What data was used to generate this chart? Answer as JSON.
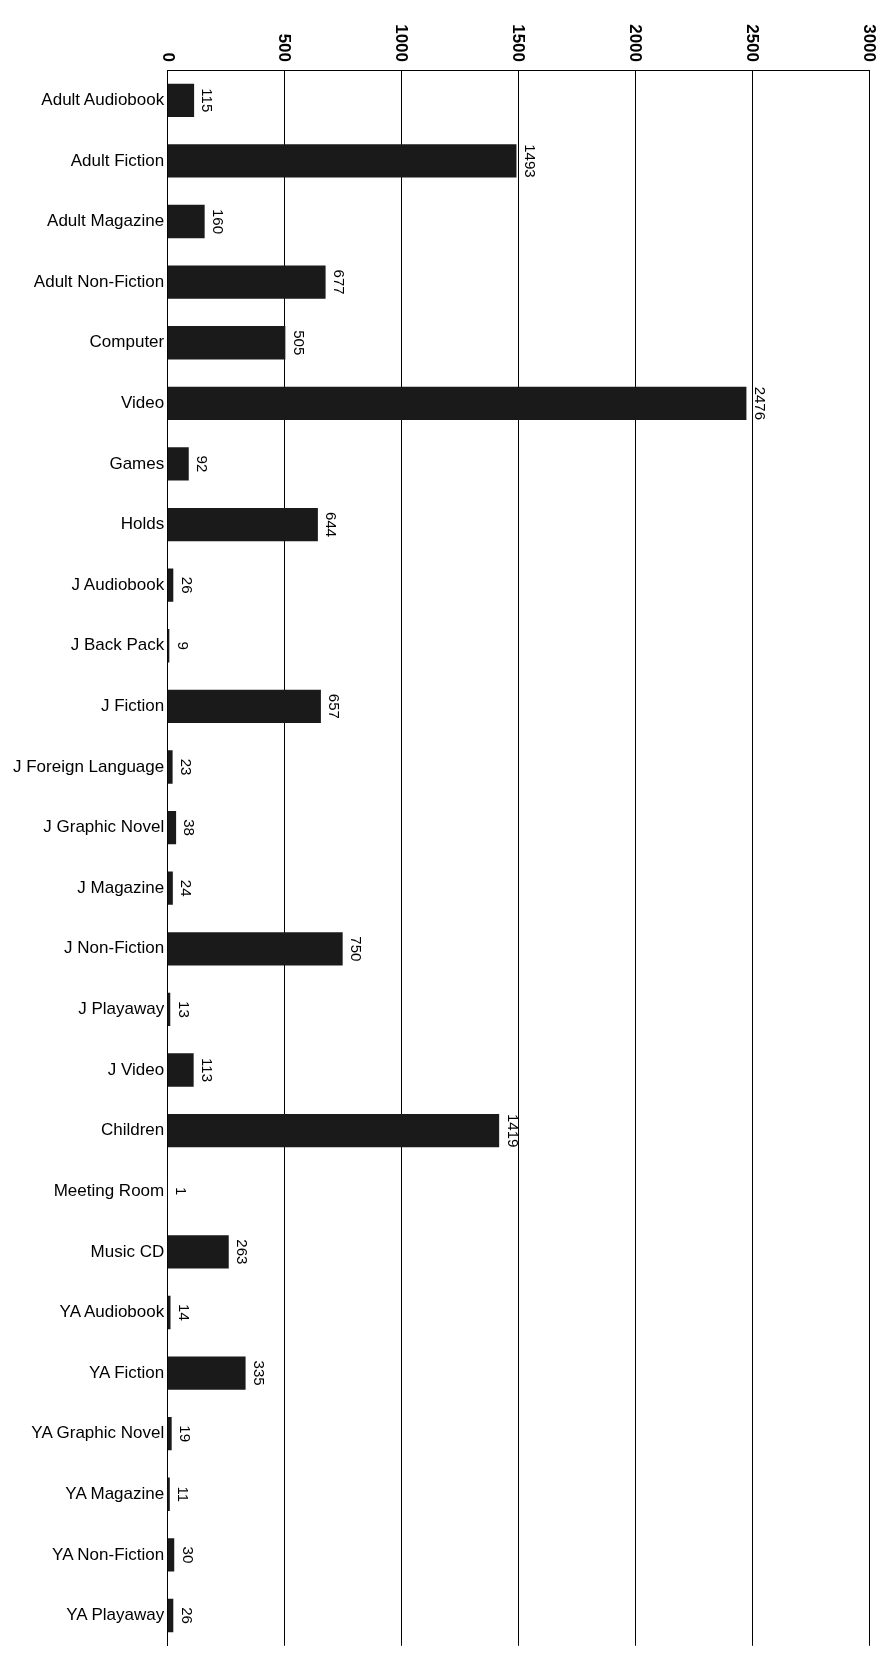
{
  "chart_data": {
    "type": "bar",
    "orientation": "horizontal",
    "categories": [
      "Adult Audiobook",
      "Adult Fiction",
      "Adult Magazine",
      "Adult Non-Fiction",
      "Computer",
      "Video",
      "Games",
      "Holds",
      "J Audiobook",
      "J Back Pack",
      "J Fiction",
      "J Foreign Language",
      "J Graphic Novel",
      "J Magazine",
      "J Non-Fiction",
      "J Playaway",
      "J Video",
      "Children",
      "Meeting Room",
      "Music CD",
      "YA Audiobook",
      "YA Fiction",
      "YA Graphic Novel",
      "YA Magazine",
      "YA Non-Fiction",
      "YA Playaway"
    ],
    "values": [
      115,
      1493,
      160,
      677,
      505,
      2476,
      92,
      644,
      26,
      9,
      657,
      23,
      38,
      24,
      750,
      13,
      113,
      1419,
      1,
      263,
      14,
      335,
      19,
      11,
      30,
      26
    ],
    "color": "#1a1a1a",
    "xlim": [
      0,
      3000
    ],
    "xticks": [
      0,
      500,
      1000,
      1500,
      2000,
      2500,
      3000
    ],
    "grid": "x",
    "legend": false,
    "data_labels": true
  }
}
